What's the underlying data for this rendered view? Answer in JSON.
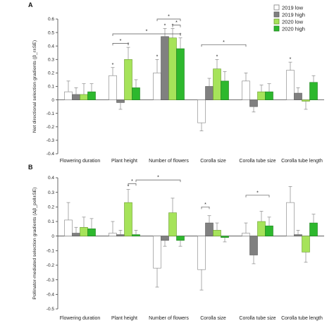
{
  "legend": [
    {
      "label": "2019 low",
      "color": "#ffffff",
      "stroke": "#7f7f7f"
    },
    {
      "label": "2019 high",
      "color": "#808080",
      "stroke": "#5a5a5a"
    },
    {
      "label": "2020 low",
      "color": "#a6e35a",
      "stroke": "#6b9b2e"
    },
    {
      "label": "2020 high",
      "color": "#2db82d",
      "stroke": "#1e7f1e"
    }
  ],
  "chart_data": [
    {
      "panel": "A",
      "type": "bar",
      "ylabel": "Net directional selection gradients (β_r±SE)",
      "ylim": [
        -0.4,
        0.6
      ],
      "yticks": [
        -0.4,
        -0.3,
        -0.2,
        -0.1,
        0,
        0.1,
        0.2,
        0.3,
        0.4,
        0.5,
        0.6
      ],
      "categories": [
        "Flowering duration",
        "Plant height",
        "Number of flowers",
        "Corolla size",
        "Corolla tube size",
        "Corolla tube length"
      ],
      "series": [
        {
          "name": "2019 low",
          "values": [
            0.06,
            0.18,
            0.2,
            -0.17,
            0.14,
            0.22
          ],
          "errors": [
            0.08,
            0.06,
            0.1,
            0.06,
            0.06,
            0.06
          ]
        },
        {
          "name": "2019 high",
          "values": [
            0.04,
            -0.02,
            0.47,
            0.1,
            -0.05,
            0.05
          ],
          "errors": [
            0.05,
            0.05,
            0.06,
            0.06,
            0.04,
            0.04
          ]
        },
        {
          "name": "2020 low",
          "values": [
            0.04,
            0.3,
            0.46,
            0.23,
            0.06,
            -0.01
          ],
          "errors": [
            0.08,
            0.09,
            0.07,
            0.07,
            0.05,
            0.06
          ]
        },
        {
          "name": "2020 high",
          "values": [
            0.06,
            0.09,
            0.38,
            0.14,
            0.06,
            0.13
          ],
          "errors": [
            0.06,
            0.06,
            0.08,
            0.07,
            0.06,
            0.05
          ]
        }
      ],
      "stars": [
        {
          "category": 1,
          "series": 0
        },
        {
          "category": 1,
          "series": 2
        },
        {
          "category": 2,
          "series": 0
        },
        {
          "category": 2,
          "series": 1
        },
        {
          "category": 2,
          "series": 2
        },
        {
          "category": 2,
          "series": 3
        },
        {
          "category": 3,
          "series": 2
        },
        {
          "category": 5,
          "series": 0
        }
      ],
      "brackets": [
        {
          "category_from": 1,
          "series_from": 0,
          "category_to": 1,
          "series_to": 2,
          "y": 0.42,
          "label": "*"
        },
        {
          "category_from": 1,
          "series_from": 0,
          "category_to": 2,
          "series_to": 3,
          "y": 0.49,
          "label": "*"
        },
        {
          "category_from": 2,
          "series_from": 0,
          "category_to": 2,
          "series_to": 3,
          "y": 0.6,
          "label": "*"
        },
        {
          "category_from": 2,
          "series_from": 2,
          "category_to": 2,
          "series_to": 3,
          "y": 0.555,
          "label": "*"
        },
        {
          "category_from": 3,
          "series_from": 0,
          "category_to": 4,
          "series_to": 0,
          "y": 0.41,
          "label": "*"
        }
      ]
    },
    {
      "panel": "B",
      "type": "bar",
      "ylabel": "Pollinator-mediated selection gradients (Δβ_poll±SE)",
      "ylim": [
        -0.5,
        0.4
      ],
      "yticks": [
        -0.5,
        -0.4,
        -0.3,
        -0.2,
        -0.1,
        0,
        0.1,
        0.2,
        0.3,
        0.4
      ],
      "categories": [
        "Flowering duration",
        "Plant height",
        "Number of flowers",
        "Corolla size",
        "Corolla tube size",
        "Corolla tube length"
      ],
      "series": [
        {
          "name": "2019 low",
          "values": [
            0.11,
            0.02,
            -0.22,
            -0.23,
            0.02,
            0.23
          ],
          "errors": [
            0.12,
            0.08,
            0.13,
            0.14,
            0.07,
            0.11
          ]
        },
        {
          "name": "2019 high",
          "values": [
            0.02,
            0.01,
            -0.03,
            0.09,
            -0.13,
            0.01
          ],
          "errors": [
            0.04,
            0.03,
            0.04,
            0.05,
            0.06,
            0.03
          ]
        },
        {
          "name": "2020 low",
          "values": [
            0.06,
            0.23,
            0.16,
            0.04,
            0.1,
            -0.11
          ],
          "errors": [
            0.07,
            0.09,
            0.1,
            0.05,
            0.07,
            0.07
          ]
        },
        {
          "name": "2020 high",
          "values": [
            0.05,
            0.01,
            -0.03,
            -0.01,
            0.07,
            0.09
          ],
          "errors": [
            0.07,
            0.03,
            0.04,
            0.03,
            0.06,
            0.06
          ]
        }
      ],
      "stars": [
        {
          "category": 1,
          "series": 2
        }
      ],
      "brackets": [
        {
          "category_from": 1,
          "series_from": 2,
          "category_to": 1,
          "series_to": 3,
          "y": 0.36,
          "label": "*"
        },
        {
          "category_from": 1,
          "series_from": 3,
          "category_to": 2,
          "series_to": 3,
          "y": 0.385,
          "label": "*"
        },
        {
          "category_from": 3,
          "series_from": 0,
          "category_to": 3,
          "series_to": 1,
          "y": 0.2,
          "label": "*"
        },
        {
          "category_from": 4,
          "series_from": 0,
          "category_to": 4,
          "series_to": 3,
          "y": 0.28,
          "label": "*"
        }
      ]
    }
  ]
}
